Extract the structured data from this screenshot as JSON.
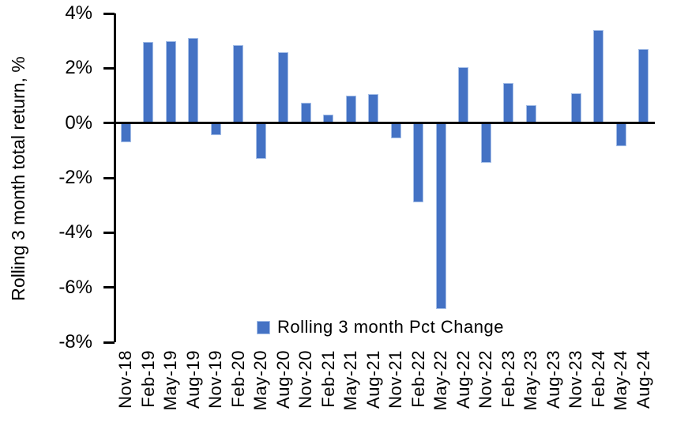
{
  "chart_data": {
    "type": "bar",
    "ylabel": "Rolling 3 month total return, %",
    "legend": "Rolling 3 month Pct Change",
    "legend_position": "bottom-center-inside-plot",
    "ylim": [
      -8,
      4
    ],
    "ytick_step": 2,
    "ytick_format": "percent",
    "grid": false,
    "colors": {
      "bar_fill": "#4472C4",
      "bar_edge": "#A7C0E8",
      "axis": "#000000",
      "text": "#000000",
      "background": "#FFFFFF"
    },
    "categories": [
      "Nov-18",
      "Feb-19",
      "May-19",
      "Aug-19",
      "Nov-19",
      "Feb-20",
      "May-20",
      "Aug-20",
      "Nov-20",
      "Feb-21",
      "May-21",
      "Aug-21",
      "Nov-21",
      "Feb-22",
      "May-22",
      "Aug-22",
      "Nov-22",
      "Feb-23",
      "May-23",
      "Aug-23",
      "Nov-23",
      "Feb-24",
      "May-24",
      "Aug-24"
    ],
    "values": [
      -0.7,
      2.95,
      3.0,
      3.1,
      -0.45,
      2.85,
      -1.3,
      2.6,
      0.75,
      0.3,
      1.0,
      1.05,
      -0.55,
      -2.9,
      -6.8,
      2.05,
      -1.45,
      1.45,
      0.65,
      0,
      1.1,
      3.4,
      -0.85,
      2.7
    ]
  }
}
